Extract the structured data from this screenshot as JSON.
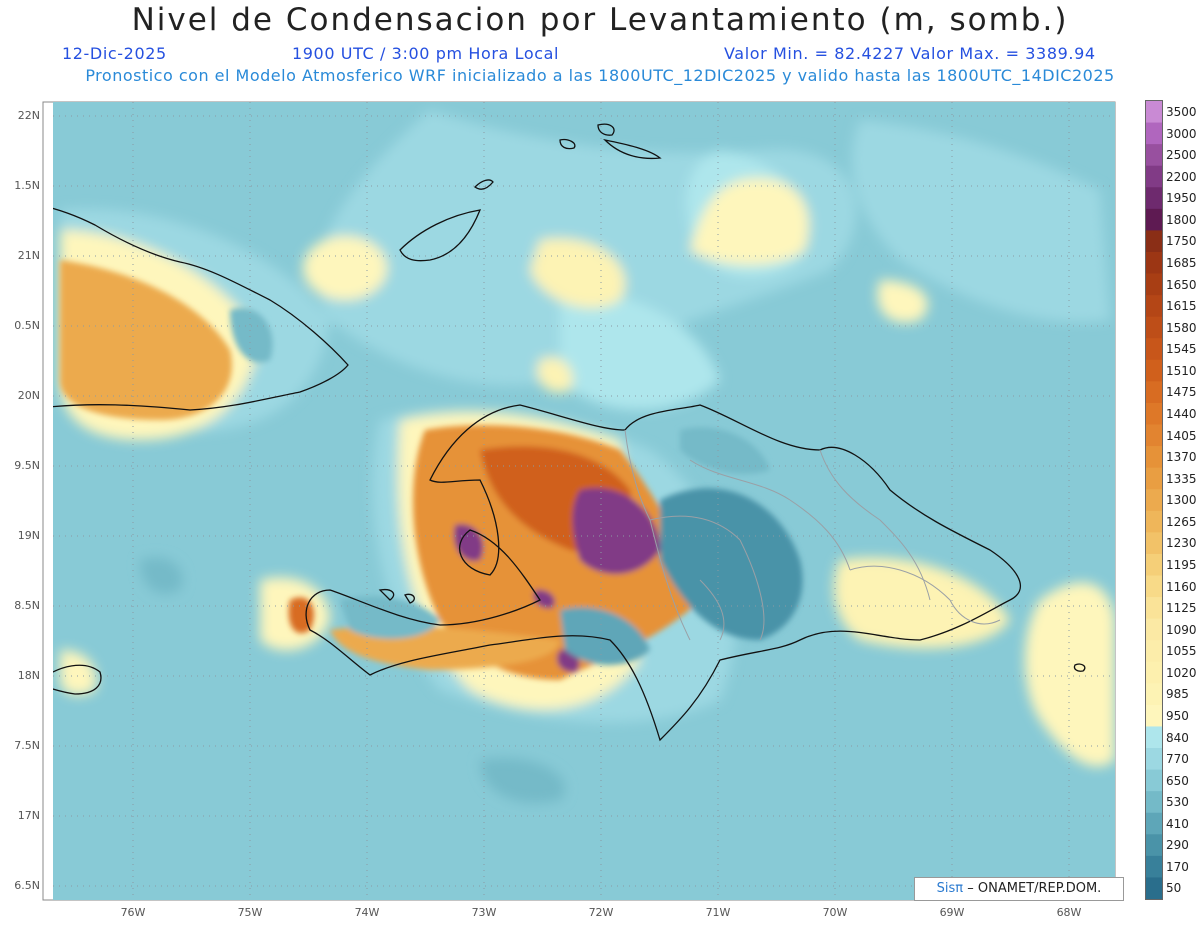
{
  "title": "Nivel de Condensacion por Levantamiento (m, somb.)",
  "date": "12-Dic-2025",
  "time": "1900 UTC / 3:00 pm Hora Local",
  "minmax": "Valor Min. = 82.4227   Valor Max. = 3389.94",
  "forecast": "Pronostico con el Modelo Atmosferico WRF inicializado a las 1800UTC_12DIC2025 y valido hasta las  1800UTC_14DIC2025",
  "credit": {
    "sis": "Sisπ",
    "org": "– ONAMET/REP.DOM."
  },
  "lat_labels": [
    "22N",
    "1.5N",
    "21N",
    "0.5N",
    "20N",
    "9.5N",
    "19N",
    "8.5N",
    "18N",
    "7.5N",
    "17N",
    "6.5N"
  ],
  "lon_labels": [
    "76W",
    "75W",
    "74W",
    "73W",
    "72W",
    "71W",
    "70W",
    "69W",
    "68W"
  ],
  "colorbar": {
    "labels": [
      "3500",
      "3000",
      "2500",
      "2200",
      "1950",
      "1800",
      "1750",
      "1685",
      "1650",
      "1615",
      "1580",
      "1545",
      "1510",
      "1475",
      "1440",
      "1405",
      "1370",
      "1335",
      "1300",
      "1265",
      "1230",
      "1195",
      "1160",
      "1125",
      "1090",
      "1055",
      "1020",
      "985",
      "950",
      "840",
      "770",
      "650",
      "530",
      "410",
      "290",
      "170",
      "50"
    ],
    "colors": [
      "#c98ad4",
      "#b066be",
      "#98509f",
      "#813b86",
      "#6e2a6e",
      "#5e1a52",
      "#8a2e16",
      "#9c3614",
      "#a83e14",
      "#b44616",
      "#be4e18",
      "#c8561a",
      "#d0601c",
      "#d86c22",
      "#de7828",
      "#e28430",
      "#e69238",
      "#e99e42",
      "#ecaa4e",
      "#efb65a",
      "#f2c268",
      "#f5cf78",
      "#f8da88",
      "#fae398",
      "#fbe9a4",
      "#fcedaa",
      "#fdf0ae",
      "#fdf3b4",
      "#fef6bc",
      "#aee6ec",
      "#9cd8e2",
      "#88cad6",
      "#74bac8",
      "#5ea6b8",
      "#4a93a8",
      "#38809a",
      "#2a6e8c"
    ]
  }
}
